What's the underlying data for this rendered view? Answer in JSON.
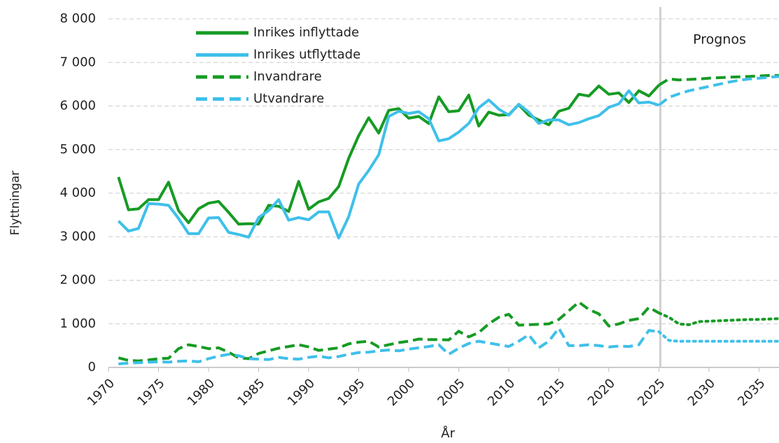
{
  "chart_data": {
    "type": "line",
    "x_label": "År",
    "y_label": "Flyttningar",
    "annotation": "Prognos",
    "forecast_start": 2025,
    "x": [
      1971,
      1972,
      1973,
      1974,
      1975,
      1976,
      1977,
      1978,
      1979,
      1980,
      1981,
      1982,
      1983,
      1984,
      1985,
      1986,
      1987,
      1988,
      1989,
      1990,
      1991,
      1992,
      1993,
      1994,
      1995,
      1996,
      1997,
      1998,
      1999,
      2000,
      2001,
      2002,
      2003,
      2004,
      2005,
      2006,
      2007,
      2008,
      2009,
      2010,
      2011,
      2012,
      2013,
      2014,
      2015,
      2016,
      2017,
      2018,
      2019,
      2020,
      2021,
      2022,
      2023,
      2024,
      2025,
      2026,
      2027,
      2028,
      2029,
      2030,
      2031,
      2032,
      2033,
      2034,
      2035,
      2036,
      2037
    ],
    "series": [
      {
        "name": "Inrikes inflyttade",
        "color": "#169b24",
        "style": "solid",
        "forecast_style": "dashed",
        "values": [
          4370,
          3620,
          3640,
          3850,
          3850,
          4250,
          3600,
          3320,
          3640,
          3770,
          3810,
          3560,
          3290,
          3300,
          3290,
          3720,
          3700,
          3580,
          4270,
          3630,
          3800,
          3880,
          4150,
          4800,
          5320,
          5730,
          5380,
          5900,
          5940,
          5720,
          5760,
          5600,
          6210,
          5870,
          5890,
          6250,
          5540,
          5860,
          5790,
          5800,
          6030,
          5790,
          5680,
          5570,
          5880,
          5950,
          6270,
          6230,
          6460,
          6270,
          6300,
          6080,
          6350,
          6230,
          6480,
          6620,
          6600,
          6610,
          6620,
          6640,
          6650,
          6660,
          6670,
          6680,
          6690,
          6700,
          6700
        ]
      },
      {
        "name": "Inrikes utflyttade",
        "color": "#3fc0ea",
        "style": "solid",
        "forecast_style": "dashed",
        "values": [
          3360,
          3130,
          3190,
          3760,
          3750,
          3720,
          3420,
          3070,
          3070,
          3430,
          3440,
          3100,
          3050,
          2990,
          3440,
          3600,
          3850,
          3380,
          3440,
          3390,
          3570,
          3570,
          2970,
          3460,
          4210,
          4520,
          4880,
          5760,
          5880,
          5830,
          5870,
          5710,
          5200,
          5250,
          5400,
          5600,
          5960,
          6140,
          5930,
          5790,
          6040,
          5860,
          5600,
          5680,
          5680,
          5570,
          5620,
          5710,
          5780,
          5970,
          6050,
          6350,
          6070,
          6090,
          6020,
          6200,
          6280,
          6350,
          6400,
          6450,
          6500,
          6550,
          6590,
          6620,
          6640,
          6660,
          6680
        ]
      },
      {
        "name": "Invandrare",
        "color": "#169b24",
        "style": "dashed",
        "forecast_style": "dotted",
        "values": [
          220,
          160,
          150,
          170,
          200,
          210,
          430,
          520,
          480,
          430,
          450,
          350,
          220,
          200,
          320,
          380,
          440,
          480,
          520,
          470,
          390,
          420,
          450,
          540,
          580,
          600,
          470,
          520,
          570,
          600,
          650,
          640,
          640,
          630,
          830,
          700,
          800,
          1000,
          1150,
          1220,
          970,
          980,
          990,
          1000,
          1100,
          1300,
          1500,
          1330,
          1230,
          950,
          1000,
          1080,
          1120,
          1380,
          1250,
          1150,
          1000,
          980,
          1050,
          1060,
          1070,
          1080,
          1090,
          1100,
          1100,
          1110,
          1120
        ]
      },
      {
        "name": "Utvandrare",
        "color": "#3fc0ea",
        "style": "dashed",
        "forecast_style": "dotted",
        "values": [
          80,
          100,
          110,
          120,
          130,
          120,
          140,
          150,
          130,
          200,
          260,
          300,
          270,
          200,
          190,
          180,
          230,
          200,
          190,
          230,
          260,
          220,
          250,
          300,
          340,
          350,
          380,
          400,
          380,
          420,
          450,
          480,
          520,
          300,
          440,
          550,
          600,
          560,
          520,
          480,
          600,
          750,
          450,
          600,
          900,
          500,
          500,
          520,
          500,
          470,
          490,
          480,
          520,
          850,
          820,
          620,
          600,
          600,
          600,
          600,
          600,
          600,
          600,
          600,
          600,
          600,
          600
        ]
      }
    ],
    "xlim": [
      1970,
      2037
    ],
    "xticks": [
      1970,
      1975,
      1980,
      1985,
      1990,
      1995,
      2000,
      2005,
      2010,
      2015,
      2020,
      2025,
      2030,
      2035
    ],
    "ylim": [
      0,
      8000
    ],
    "yticks": [
      0,
      {
        "value": 1000,
        "label": "1 000"
      },
      {
        "value": 2000,
        "label": "2 000"
      },
      {
        "value": 3000,
        "label": "3 000"
      },
      {
        "value": 4000,
        "label": "4 000"
      },
      {
        "value": 5000,
        "label": "5 000"
      },
      {
        "value": 6000,
        "label": "6 000"
      },
      {
        "value": 7000,
        "label": "7 000"
      },
      {
        "value": 8000,
        "label": "8 000"
      }
    ],
    "grid": true
  }
}
